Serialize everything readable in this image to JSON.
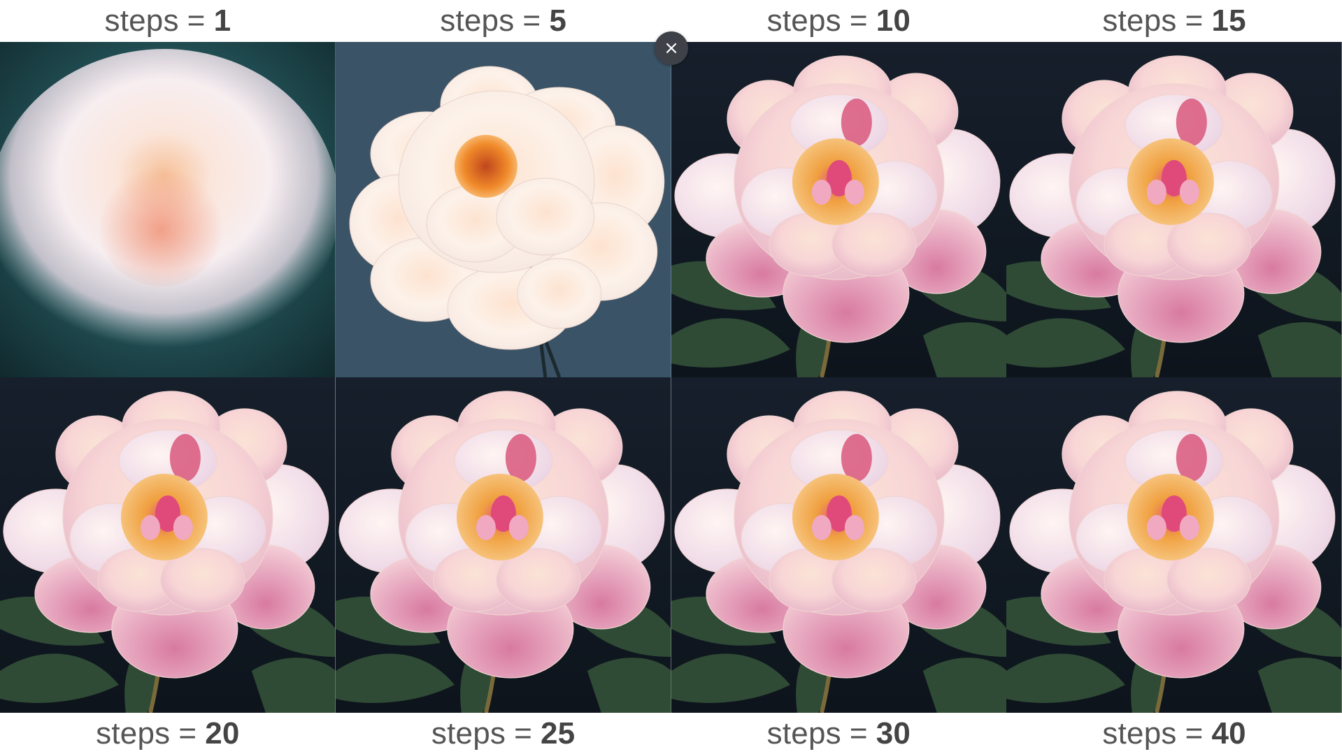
{
  "top_labels": [
    {
      "prefix": "steps",
      "eq": "=",
      "value": "1"
    },
    {
      "prefix": "steps",
      "eq": "=",
      "value": "5"
    },
    {
      "prefix": "steps",
      "eq": "=",
      "value": "10"
    },
    {
      "prefix": "steps",
      "eq": "=",
      "value": "15"
    }
  ],
  "bottom_labels": [
    {
      "prefix": "steps",
      "eq": "=",
      "value": "20"
    },
    {
      "prefix": "steps",
      "eq": "=",
      "value": "25"
    },
    {
      "prefix": "steps",
      "eq": "=",
      "value": "30"
    },
    {
      "prefix": "steps",
      "eq": "=",
      "value": "40"
    }
  ],
  "close_button": {
    "glyph": "×",
    "icon": "close-icon"
  },
  "colors": {
    "label_text": "#555555",
    "blur_bg": "#1f4a4f",
    "step5_bg": "#3a5366",
    "dark_bg": "#121a24",
    "petal_light": "#fbe9e4",
    "petal_pink": "#f3c3cc",
    "petal_magenta": "#d8688f",
    "stamen": "#f0a838",
    "leaf": "#2f4a35"
  }
}
